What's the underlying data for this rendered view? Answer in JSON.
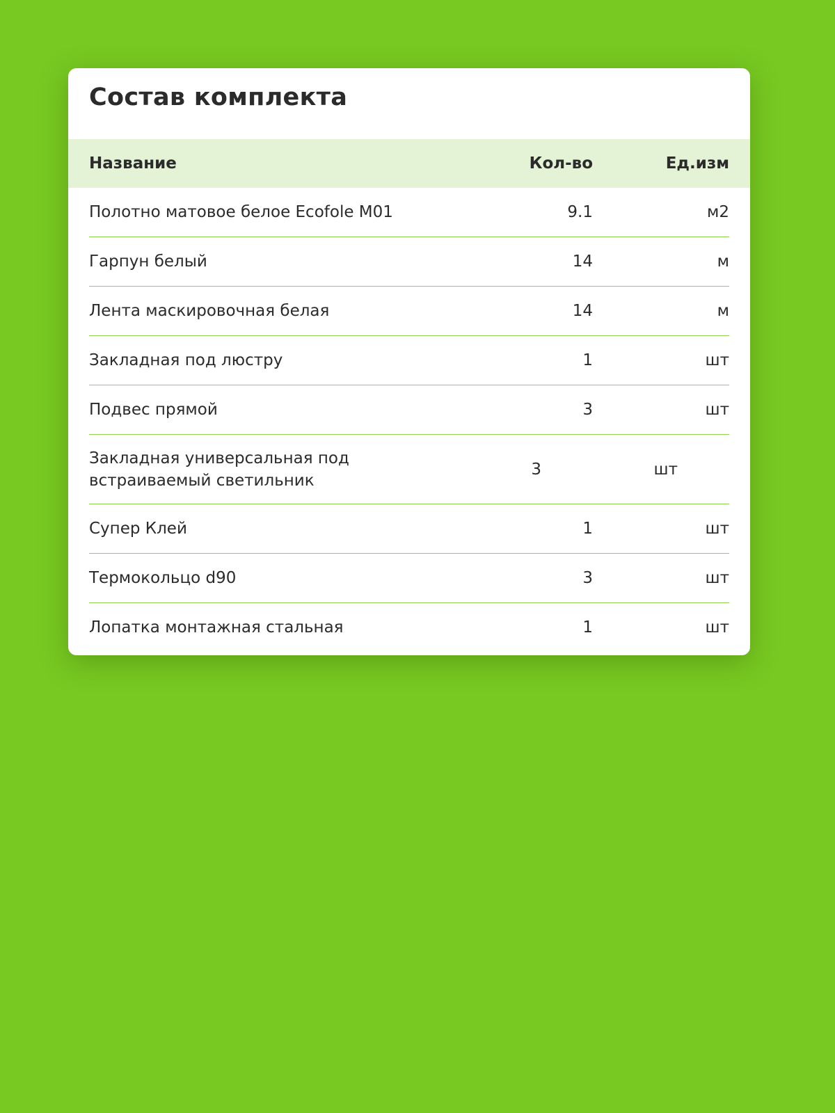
{
  "title": "Состав комплекта",
  "columns": {
    "name": "Название",
    "qty": "Кол-во",
    "unit": "Ед.изм"
  },
  "rows": [
    {
      "name": "Полотно матовое белое Ecofole M01",
      "qty": "9.1",
      "unit": "м2"
    },
    {
      "name": "Гарпун белый",
      "qty": "14",
      "unit": "м"
    },
    {
      "name": "Лента маскировочная белая",
      "qty": "14",
      "unit": "м"
    },
    {
      "name": "Закладная под люстру",
      "qty": "1",
      "unit": "шт"
    },
    {
      "name": "Подвес прямой",
      "qty": "3",
      "unit": "шт"
    },
    {
      "name": "Закладная универсальная под встраиваемый светильник",
      "qty": "3",
      "unit": "шт"
    },
    {
      "name": "Супер Клей",
      "qty": "1",
      "unit": "шт"
    },
    {
      "name": "Термокольцо d90",
      "qty": "3",
      "unit": "шт"
    },
    {
      "name": "Лопатка монтажная стальная",
      "qty": "1",
      "unit": "шт"
    }
  ],
  "colors": {
    "background": "#78c922",
    "header_bg": "#e4f2d5",
    "divider": "#8fd34f"
  }
}
